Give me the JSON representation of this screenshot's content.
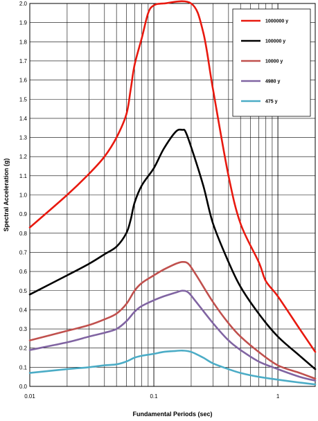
{
  "chart_data": {
    "type": "line",
    "xlabel": "Fundamental Periods (sec)",
    "ylabel": "Spectral Acceleration (g)",
    "x_scale": "log",
    "xlim": [
      0.01,
      2
    ],
    "ylim": [
      0,
      2
    ],
    "y_ticks": [
      "0.0",
      "0.1",
      "0.2",
      "0.3",
      "0.4",
      "0.5",
      "0.6",
      "0.7",
      "0.8",
      "0.9",
      "1.0",
      "1.1",
      "1.2",
      "1.3",
      "1.4",
      "1.5",
      "1.6",
      "1.7",
      "1.8",
      "1.9",
      "2.0"
    ],
    "x_tick_labels": [
      {
        "value": 0.01,
        "label": "0.01"
      },
      {
        "value": 0.1,
        "label": "0.1"
      },
      {
        "value": 1,
        "label": "1"
      }
    ],
    "grid": true,
    "legend_position": "top-right",
    "series": [
      {
        "name": "1000000 y",
        "color": "#e8190f",
        "points": [
          [
            0.01,
            0.83
          ],
          [
            0.02,
            1.0
          ],
          [
            0.03,
            1.11
          ],
          [
            0.04,
            1.2
          ],
          [
            0.05,
            1.3
          ],
          [
            0.06,
            1.42
          ],
          [
            0.065,
            1.55
          ],
          [
            0.07,
            1.68
          ],
          [
            0.08,
            1.82
          ],
          [
            0.09,
            1.95
          ],
          [
            0.1,
            1.99
          ],
          [
            0.12,
            2.0
          ],
          [
            0.2,
            2.0
          ],
          [
            0.25,
            1.85
          ],
          [
            0.3,
            1.55
          ],
          [
            0.4,
            1.1
          ],
          [
            0.5,
            0.85
          ],
          [
            0.7,
            0.65
          ],
          [
            0.8,
            0.55
          ],
          [
            1.0,
            0.47
          ],
          [
            1.5,
            0.3
          ],
          [
            2.0,
            0.18
          ]
        ]
      },
      {
        "name": "100000 y",
        "color": "#000000",
        "points": [
          [
            0.01,
            0.48
          ],
          [
            0.02,
            0.58
          ],
          [
            0.03,
            0.64
          ],
          [
            0.04,
            0.69
          ],
          [
            0.05,
            0.73
          ],
          [
            0.06,
            0.8
          ],
          [
            0.065,
            0.87
          ],
          [
            0.07,
            0.96
          ],
          [
            0.08,
            1.05
          ],
          [
            0.1,
            1.14
          ],
          [
            0.12,
            1.24
          ],
          [
            0.15,
            1.33
          ],
          [
            0.17,
            1.34
          ],
          [
            0.18,
            1.33
          ],
          [
            0.2,
            1.25
          ],
          [
            0.25,
            1.05
          ],
          [
            0.3,
            0.85
          ],
          [
            0.4,
            0.65
          ],
          [
            0.5,
            0.52
          ],
          [
            0.7,
            0.38
          ],
          [
            1.0,
            0.26
          ],
          [
            1.5,
            0.16
          ],
          [
            2.0,
            0.09
          ]
        ]
      },
      {
        "name": "10000 y",
        "color": "#c0504d",
        "points": [
          [
            0.01,
            0.24
          ],
          [
            0.02,
            0.29
          ],
          [
            0.03,
            0.32
          ],
          [
            0.04,
            0.35
          ],
          [
            0.05,
            0.38
          ],
          [
            0.06,
            0.43
          ],
          [
            0.07,
            0.5
          ],
          [
            0.08,
            0.54
          ],
          [
            0.1,
            0.58
          ],
          [
            0.12,
            0.61
          ],
          [
            0.15,
            0.64
          ],
          [
            0.17,
            0.65
          ],
          [
            0.19,
            0.64
          ],
          [
            0.22,
            0.58
          ],
          [
            0.3,
            0.44
          ],
          [
            0.4,
            0.33
          ],
          [
            0.5,
            0.26
          ],
          [
            0.7,
            0.18
          ],
          [
            1.0,
            0.11
          ],
          [
            1.5,
            0.07
          ],
          [
            2.0,
            0.04
          ]
        ]
      },
      {
        "name": "4980 y",
        "color": "#8064a2",
        "points": [
          [
            0.01,
            0.19
          ],
          [
            0.02,
            0.23
          ],
          [
            0.03,
            0.26
          ],
          [
            0.04,
            0.28
          ],
          [
            0.05,
            0.3
          ],
          [
            0.06,
            0.34
          ],
          [
            0.07,
            0.39
          ],
          [
            0.08,
            0.42
          ],
          [
            0.1,
            0.45
          ],
          [
            0.12,
            0.47
          ],
          [
            0.15,
            0.49
          ],
          [
            0.17,
            0.5
          ],
          [
            0.19,
            0.49
          ],
          [
            0.22,
            0.44
          ],
          [
            0.3,
            0.33
          ],
          [
            0.4,
            0.24
          ],
          [
            0.5,
            0.19
          ],
          [
            0.7,
            0.13
          ],
          [
            1.0,
            0.09
          ],
          [
            1.5,
            0.05
          ],
          [
            2.0,
            0.03
          ]
        ]
      },
      {
        "name": "475 y",
        "color": "#4bacc6",
        "points": [
          [
            0.01,
            0.07
          ],
          [
            0.02,
            0.09
          ],
          [
            0.03,
            0.1
          ],
          [
            0.04,
            0.11
          ],
          [
            0.05,
            0.115
          ],
          [
            0.06,
            0.13
          ],
          [
            0.07,
            0.15
          ],
          [
            0.08,
            0.16
          ],
          [
            0.1,
            0.17
          ],
          [
            0.12,
            0.18
          ],
          [
            0.15,
            0.185
          ],
          [
            0.17,
            0.187
          ],
          [
            0.2,
            0.18
          ],
          [
            0.25,
            0.15
          ],
          [
            0.3,
            0.12
          ],
          [
            0.4,
            0.09
          ],
          [
            0.5,
            0.07
          ],
          [
            0.7,
            0.05
          ],
          [
            1.0,
            0.035
          ],
          [
            1.5,
            0.02
          ],
          [
            2.0,
            0.01
          ]
        ]
      }
    ]
  }
}
